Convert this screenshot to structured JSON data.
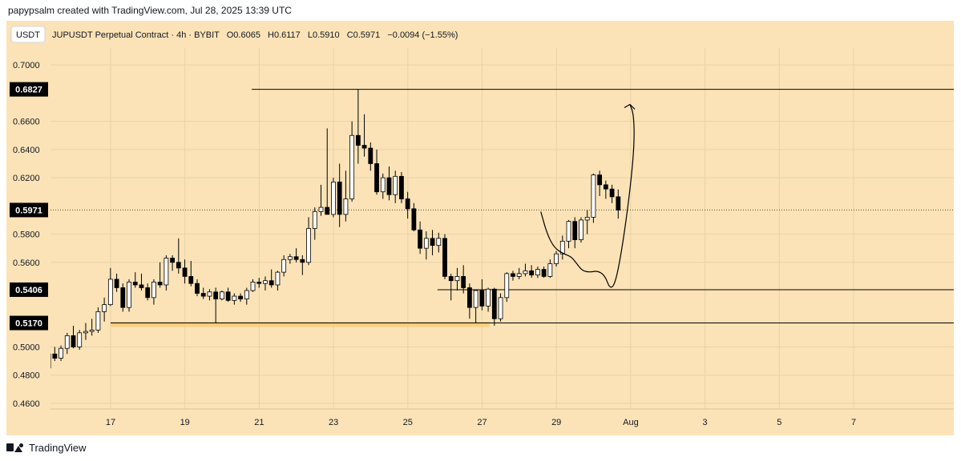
{
  "attribution": "papypsalm created with TradingView.com, Jul 28, 2025 13:39 UTC",
  "footer": {
    "brand": "TradingView"
  },
  "colors": {
    "background": "#fbe3b7",
    "candle_up_fill": "#ffffff",
    "candle_down_fill": "#000000",
    "candle_border": "#000000",
    "line": "#000000",
    "support_zone": "#ffc66a"
  },
  "chart_data": {
    "type": "candlestick",
    "currency_badge": "USDT",
    "title": "JUPUSDT Perpetual Contract · 4h · BYBIT",
    "ohlc_legend": {
      "open_label": "O0.6065",
      "high_label": "H0.6117",
      "low_label": "L0.5910",
      "close_label": "C0.5971",
      "change_label": "−0.0094 (−1.55%)"
    },
    "ylim": [
      0.456,
      0.712
    ],
    "y_ticks": [
      "0.7000",
      "0.6600",
      "0.6400",
      "0.6200",
      "0.5800",
      "0.5600",
      "0.5000",
      "0.4800",
      "0.4600"
    ],
    "x_ticks": [
      "17",
      "19",
      "21",
      "23",
      "25",
      "27",
      "29",
      "Aug",
      "3",
      "5",
      "7"
    ],
    "x_tick_days": [
      17,
      19,
      21,
      23,
      25,
      27,
      29,
      31,
      33,
      35,
      37
    ],
    "grid": true,
    "price_labels": [
      {
        "value": 0.6827,
        "label": "0.6827"
      },
      {
        "value": 0.5971,
        "label": "0.5971"
      },
      {
        "value": 0.5406,
        "label": "0.5406"
      },
      {
        "value": 0.517,
        "label": "0.5170"
      }
    ],
    "horizontal_lines": [
      {
        "price": 0.6827,
        "from_day": 20.8,
        "style": "solid"
      },
      {
        "price": 0.5971,
        "from_day": 15.6,
        "style": "dotted"
      },
      {
        "price": 0.5406,
        "from_day": 25.8,
        "style": "solid"
      },
      {
        "price": 0.517,
        "from_day": 17.0,
        "style": "solid"
      }
    ],
    "support_zone": {
      "price": 0.516,
      "from_day": 17.0,
      "to_day": 27.2
    },
    "candle_start_day": 15.33,
    "candle_step_days": 0.16667,
    "candles": [
      [
        0.485,
        0.495,
        0.478,
        0.495
      ],
      [
        0.495,
        0.5,
        0.49,
        0.492
      ],
      [
        0.492,
        0.501,
        0.49,
        0.499
      ],
      [
        0.499,
        0.51,
        0.495,
        0.508
      ],
      [
        0.508,
        0.515,
        0.499,
        0.5
      ],
      [
        0.5,
        0.512,
        0.498,
        0.51
      ],
      [
        0.51,
        0.517,
        0.505,
        0.511
      ],
      [
        0.511,
        0.52,
        0.508,
        0.512
      ],
      [
        0.512,
        0.528,
        0.51,
        0.525
      ],
      [
        0.525,
        0.535,
        0.518,
        0.53
      ],
      [
        0.53,
        0.556,
        0.529,
        0.548
      ],
      [
        0.548,
        0.552,
        0.539,
        0.542
      ],
      [
        0.542,
        0.545,
        0.525,
        0.528
      ],
      [
        0.528,
        0.548,
        0.525,
        0.546
      ],
      [
        0.546,
        0.553,
        0.542,
        0.544
      ],
      [
        0.544,
        0.552,
        0.54,
        0.542
      ],
      [
        0.542,
        0.545,
        0.533,
        0.535
      ],
      [
        0.535,
        0.548,
        0.53,
        0.546
      ],
      [
        0.546,
        0.56,
        0.542,
        0.544
      ],
      [
        0.544,
        0.565,
        0.54,
        0.563
      ],
      [
        0.563,
        0.565,
        0.554,
        0.56
      ],
      [
        0.56,
        0.577,
        0.552,
        0.556
      ],
      [
        0.556,
        0.562,
        0.545,
        0.55
      ],
      [
        0.55,
        0.561,
        0.543,
        0.545
      ],
      [
        0.545,
        0.548,
        0.536,
        0.538
      ],
      [
        0.538,
        0.542,
        0.534,
        0.536
      ],
      [
        0.536,
        0.541,
        0.533,
        0.539
      ],
      [
        0.539,
        0.542,
        0.517,
        0.534
      ],
      [
        0.534,
        0.54,
        0.533,
        0.539
      ],
      [
        0.539,
        0.542,
        0.532,
        0.533
      ],
      [
        0.533,
        0.538,
        0.53,
        0.536
      ],
      [
        0.536,
        0.538,
        0.532,
        0.534
      ],
      [
        0.534,
        0.542,
        0.53,
        0.54
      ],
      [
        0.54,
        0.548,
        0.539,
        0.546
      ],
      [
        0.546,
        0.549,
        0.542,
        0.545
      ],
      [
        0.545,
        0.55,
        0.54,
        0.547
      ],
      [
        0.547,
        0.555,
        0.542,
        0.544
      ],
      [
        0.544,
        0.554,
        0.54,
        0.553
      ],
      [
        0.553,
        0.565,
        0.55,
        0.562
      ],
      [
        0.562,
        0.566,
        0.559,
        0.564
      ],
      [
        0.564,
        0.57,
        0.56,
        0.562
      ],
      [
        0.562,
        0.565,
        0.551,
        0.56
      ],
      [
        0.56,
        0.592,
        0.558,
        0.584
      ],
      [
        0.584,
        0.599,
        0.576,
        0.596
      ],
      [
        0.596,
        0.615,
        0.593,
        0.599
      ],
      [
        0.599,
        0.655,
        0.595,
        0.594
      ],
      [
        0.594,
        0.62,
        0.592,
        0.617
      ],
      [
        0.617,
        0.63,
        0.585,
        0.594
      ],
      [
        0.594,
        0.625,
        0.589,
        0.605
      ],
      [
        0.605,
        0.66,
        0.603,
        0.65
      ],
      [
        0.65,
        0.6827,
        0.63,
        0.643
      ],
      [
        0.643,
        0.665,
        0.635,
        0.641
      ],
      [
        0.641,
        0.645,
        0.625,
        0.63
      ],
      [
        0.63,
        0.64,
        0.608,
        0.61
      ],
      [
        0.61,
        0.623,
        0.605,
        0.62
      ],
      [
        0.62,
        0.628,
        0.604,
        0.608
      ],
      [
        0.608,
        0.625,
        0.602,
        0.621
      ],
      [
        0.621,
        0.624,
        0.602,
        0.605
      ],
      [
        0.605,
        0.61,
        0.591,
        0.598
      ],
      [
        0.598,
        0.602,
        0.582,
        0.583
      ],
      [
        0.583,
        0.589,
        0.566,
        0.57
      ],
      [
        0.57,
        0.582,
        0.562,
        0.577
      ],
      [
        0.577,
        0.583,
        0.565,
        0.572
      ],
      [
        0.572,
        0.581,
        0.567,
        0.577
      ],
      [
        0.577,
        0.58,
        0.548,
        0.55
      ],
      [
        0.55,
        0.552,
        0.533,
        0.547
      ],
      [
        0.547,
        0.556,
        0.54,
        0.55
      ],
      [
        0.55,
        0.558,
        0.538,
        0.542
      ],
      [
        0.542,
        0.545,
        0.52,
        0.528
      ],
      [
        0.528,
        0.54,
        0.517,
        0.54
      ],
      [
        0.54,
        0.548,
        0.526,
        0.529
      ],
      [
        0.529,
        0.542,
        0.525,
        0.541
      ],
      [
        0.541,
        0.542,
        0.515,
        0.52
      ],
      [
        0.52,
        0.538,
        0.518,
        0.535
      ],
      [
        0.535,
        0.553,
        0.532,
        0.552
      ],
      [
        0.552,
        0.554,
        0.547,
        0.55
      ],
      [
        0.55,
        0.556,
        0.548,
        0.552
      ],
      [
        0.552,
        0.559,
        0.55,
        0.554
      ],
      [
        0.554,
        0.558,
        0.549,
        0.551
      ],
      [
        0.551,
        0.557,
        0.549,
        0.555
      ],
      [
        0.555,
        0.557,
        0.549,
        0.55
      ],
      [
        0.55,
        0.562,
        0.549,
        0.559
      ],
      [
        0.559,
        0.568,
        0.557,
        0.566
      ],
      [
        0.566,
        0.579,
        0.562,
        0.575
      ],
      [
        0.575,
        0.59,
        0.57,
        0.589
      ],
      [
        0.589,
        0.592,
        0.57,
        0.576
      ],
      [
        0.576,
        0.592,
        0.574,
        0.59
      ],
      [
        0.59,
        0.597,
        0.58,
        0.592
      ],
      [
        0.592,
        0.623,
        0.588,
        0.622
      ],
      [
        0.622,
        0.625,
        0.607,
        0.615
      ],
      [
        0.615,
        0.618,
        0.605,
        0.612
      ],
      [
        0.612,
        0.615,
        0.602,
        0.6065
      ],
      [
        0.6065,
        0.6117,
        0.591,
        0.5971
      ]
    ],
    "projection_path": [
      [
        28.58,
        0.596
      ],
      [
        28.75,
        0.58
      ],
      [
        28.95,
        0.57
      ],
      [
        29.2,
        0.566
      ],
      [
        29.4,
        0.564
      ],
      [
        29.55,
        0.559
      ],
      [
        29.7,
        0.554
      ],
      [
        29.9,
        0.553
      ],
      [
        30.1,
        0.554
      ],
      [
        30.3,
        0.551
      ],
      [
        30.45,
        0.5406
      ],
      [
        30.6,
        0.546
      ],
      [
        30.8,
        0.575
      ],
      [
        31.0,
        0.615
      ],
      [
        31.1,
        0.645
      ],
      [
        31.08,
        0.665
      ],
      [
        30.98,
        0.672
      ]
    ]
  }
}
